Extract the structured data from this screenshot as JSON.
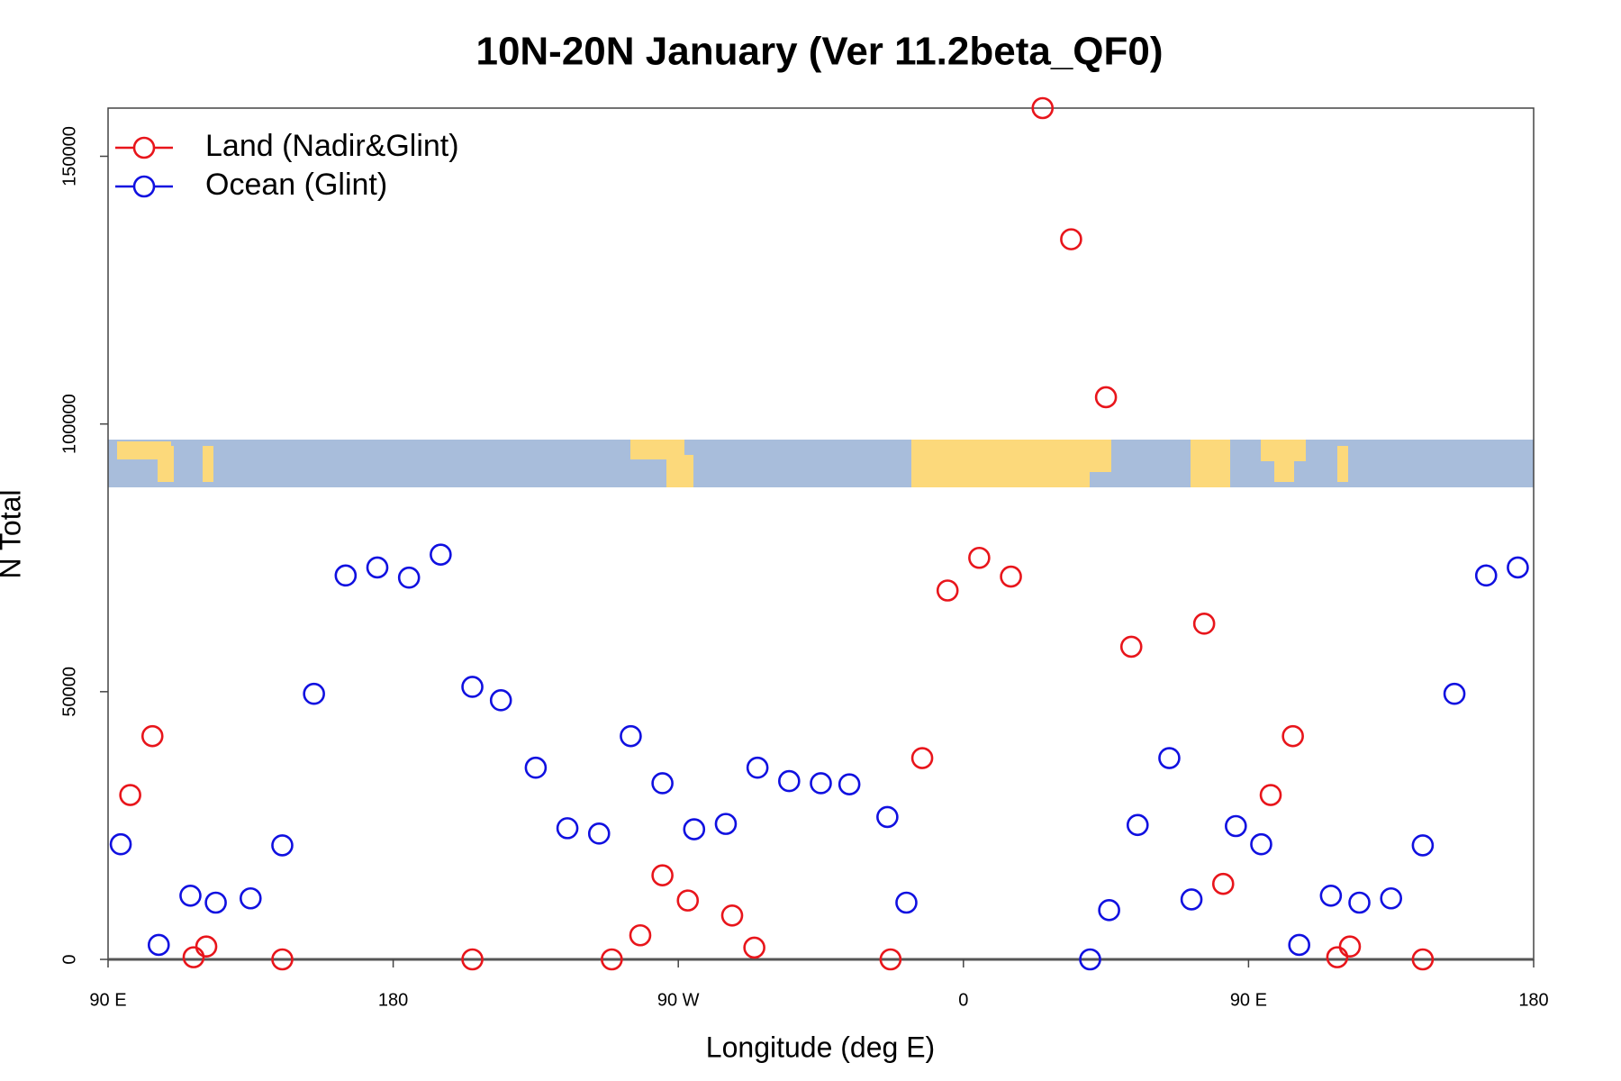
{
  "chart_data": {
    "type": "scatter",
    "title": "10N-20N January (Ver 11.2beta_QF0)",
    "x_label": "Longitude (deg E)",
    "y_label": "N Total",
    "xlim": [
      90,
      540
    ],
    "ylim": [
      0,
      159000
    ],
    "xticks": [
      {
        "value": 90,
        "label": "90 E"
      },
      180,
      {
        "value": 270,
        "label": "90 W"
      },
      {
        "value": 360,
        "label": "0"
      },
      {
        "value": 450,
        "label": "90 E"
      },
      {
        "value": 540,
        "label": "180"
      }
    ],
    "yticks": [
      0,
      50000,
      100000,
      150000
    ],
    "legend": "top-left",
    "series": [
      {
        "name": "Land (Nadir&Glint)",
        "color": "#e8151b",
        "x": [
          97,
          104,
          117,
          121,
          145,
          205,
          249,
          258,
          265,
          273,
          287,
          294,
          337,
          347,
          355,
          365,
          375,
          385,
          394,
          405,
          413,
          436,
          442,
          457,
          464,
          478,
          482,
          505
        ],
        "values": [
          30700,
          41700,
          400,
          2400,
          0,
          0,
          0,
          4500,
          15700,
          11000,
          8200,
          2200,
          0,
          37600,
          68900,
          75000,
          71500,
          159000,
          134500,
          105000,
          58400,
          62700,
          14100,
          30700,
          41700,
          400,
          2400,
          0
        ]
      },
      {
        "name": "Ocean (Glint)",
        "color": "#1010e0",
        "x": [
          94,
          106,
          116,
          124,
          135,
          145,
          155,
          165,
          175,
          185,
          195,
          205,
          214,
          225,
          235,
          245,
          255,
          265,
          275,
          285,
          295,
          305,
          315,
          324,
          336,
          342,
          400,
          406,
          415,
          425,
          432,
          446,
          454,
          466,
          476,
          485,
          495,
          505,
          515,
          525,
          535
        ],
        "values": [
          21500,
          2700,
          11900,
          10600,
          11400,
          21300,
          49600,
          71700,
          73200,
          71300,
          75600,
          50900,
          48400,
          35800,
          24500,
          23500,
          41700,
          32900,
          24300,
          25300,
          35800,
          33300,
          32900,
          32700,
          26600,
          10600,
          0,
          9200,
          25100,
          37600,
          11200,
          24900,
          21500,
          2700,
          11900,
          10600,
          11400,
          21300,
          49600,
          71700,
          73200
        ]
      }
    ]
  }
}
